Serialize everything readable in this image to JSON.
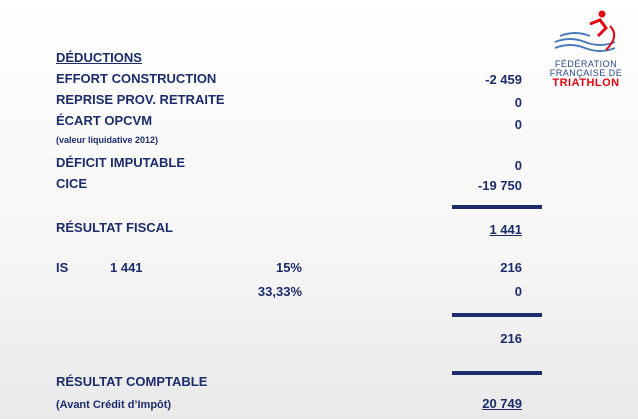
{
  "header": {
    "title": "DÉDUCTIONS"
  },
  "logo": {
    "line1": "FÉDÉRATION",
    "line2": "FRANÇAISE DE",
    "line3": "TRIATHLON"
  },
  "deductions": [
    {
      "label": "EFFORT CONSTRUCTION",
      "value": "-2 459"
    },
    {
      "label": "REPRISE PROV. RETRAITE",
      "value": "0"
    },
    {
      "label": "ÉCART OPCVM",
      "note": "(valeur liquidative 2012)",
      "value": "0"
    },
    {
      "label": "DÉFICIT IMPUTABLE",
      "value": "0"
    },
    {
      "label": "CICE",
      "value": "-19 750"
    }
  ],
  "resultat_fiscal": {
    "label": "RÉSULTAT FISCAL",
    "value": "1 441"
  },
  "is": {
    "label": "IS",
    "base": "1 441",
    "rates": [
      {
        "rate": "15%",
        "value": "216"
      },
      {
        "rate": "33,33%",
        "value": "0"
      }
    ],
    "total": "216"
  },
  "resultat_comptable": {
    "label": "RÉSULTAT COMPTABLE",
    "note": "(Avant Crédit d’Impôt)",
    "value": "20 749"
  }
}
